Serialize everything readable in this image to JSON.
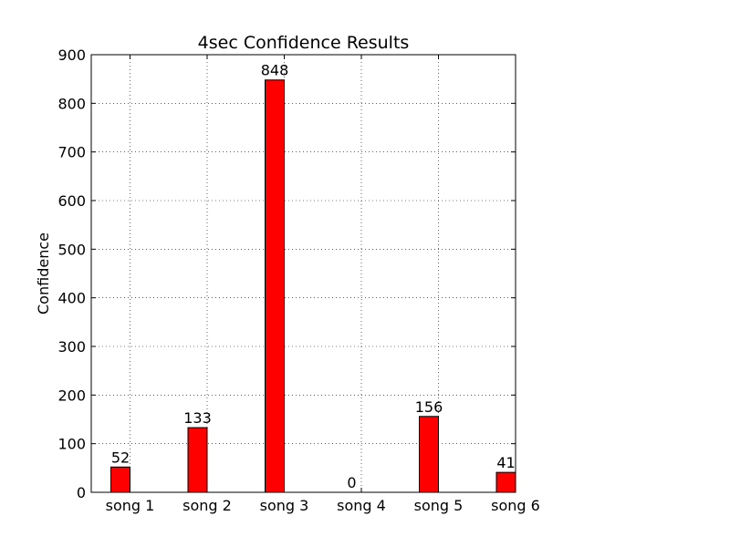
{
  "chart_data": {
    "type": "bar",
    "title": "4sec Confidence Results",
    "xlabel": "",
    "ylabel": "Confidence",
    "categories": [
      "song 1",
      "song 2",
      "song 3",
      "song 4",
      "song 5",
      "song 6"
    ],
    "values": [
      52,
      133,
      848,
      0,
      156,
      41
    ],
    "data_labels": [
      "52",
      "133",
      "848",
      "0",
      "156",
      "41"
    ],
    "ylim": [
      0,
      900
    ],
    "yticks": [
      0,
      100,
      200,
      300,
      400,
      500,
      600,
      700,
      800,
      900
    ],
    "ytick_labels": [
      "0",
      "100",
      "200",
      "300",
      "400",
      "500",
      "600",
      "700",
      "800",
      "900"
    ],
    "grid": true,
    "bar_color": "#ff0000",
    "edge_color": "#000000"
  }
}
